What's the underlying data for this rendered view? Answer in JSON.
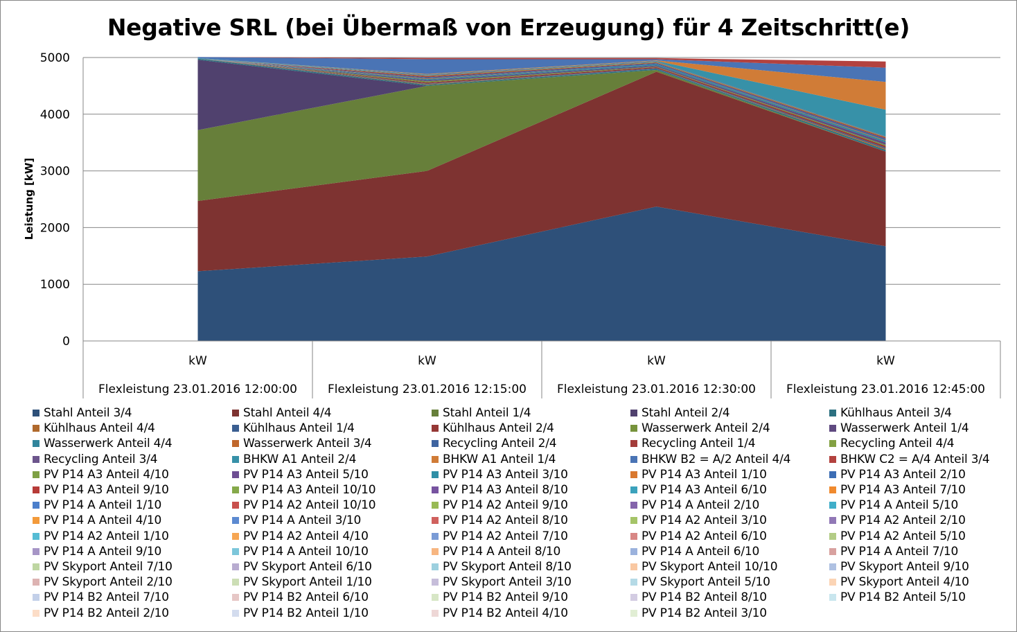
{
  "chart_data": {
    "type": "area",
    "stacked": true,
    "title": "Negative SRL (bei Übermaß von Erzeugung) für 4 Zeitschritt(e)",
    "ylabel": "Leistung [kW]",
    "ylim": [
      0,
      5000
    ],
    "yticks": [
      0,
      1000,
      2000,
      3000,
      4000,
      5000
    ],
    "grid": true,
    "legend_position": "bottom",
    "x_sublabel": [
      "kW",
      "kW",
      "kW",
      "kW"
    ],
    "categories": [
      "Flexleistung 23.01.2016 12:00:00",
      "Flexleistung 23.01.2016 12:15:00",
      "Flexleistung 23.01.2016 12:30:00",
      "Flexleistung 23.01.2016 12:45:00"
    ],
    "series": [
      {
        "name": "Stahl Anteil 3/4",
        "color": "#2E5079",
        "values": [
          1230,
          1490,
          2370,
          1670
        ]
      },
      {
        "name": "Stahl Anteil 4/4",
        "color": "#7E3331",
        "values": [
          1240,
          1510,
          2380,
          1670
        ]
      },
      {
        "name": "Stahl Anteil 1/4",
        "color": "#677F3A",
        "values": [
          1250,
          1500,
          30,
          0
        ]
      },
      {
        "name": "Stahl Anteil 2/4",
        "color": "#50416E",
        "values": [
          1240,
          0,
          0,
          0
        ]
      },
      {
        "name": "Kühlhaus Anteil 3/4",
        "color": "#2C7080",
        "values": [
          20,
          20,
          20,
          30
        ]
      },
      {
        "name": "Kühlhaus Anteil 4/4",
        "color": "#B0692C",
        "values": [
          0,
          10,
          0,
          20
        ]
      },
      {
        "name": "Kühlhaus Anteil 1/4",
        "color": "#3A5E91",
        "values": [
          0,
          10,
          10,
          20
        ]
      },
      {
        "name": "Kühlhaus Anteil 2/4",
        "color": "#953735",
        "values": [
          0,
          20,
          20,
          30
        ]
      },
      {
        "name": "Wasserwerk Anteil 2/4",
        "color": "#77933C",
        "values": [
          0,
          20,
          10,
          20
        ]
      },
      {
        "name": "Wasserwerk Anteil 1/4",
        "color": "#5F4A80",
        "values": [
          0,
          20,
          20,
          40
        ]
      },
      {
        "name": "Wasserwerk Anteil 4/4",
        "color": "#31859C",
        "values": [
          0,
          20,
          20,
          30
        ]
      },
      {
        "name": "Wasserwerk Anteil 3/4",
        "color": "#C0672C",
        "values": [
          0,
          10,
          0,
          10
        ]
      },
      {
        "name": "Recycling Anteil 2/4",
        "color": "#3E64A0",
        "values": [
          0,
          20,
          20,
          30
        ]
      },
      {
        "name": "Recycling Anteil 1/4",
        "color": "#A33C3A",
        "values": [
          0,
          20,
          10,
          20
        ]
      },
      {
        "name": "Recycling Anteil 4/4",
        "color": "#83A143",
        "values": [
          0,
          10,
          10,
          10
        ]
      },
      {
        "name": "Recycling Anteil 3/4",
        "color": "#6C558C",
        "values": [
          0,
          10,
          10,
          10
        ]
      },
      {
        "name": "BHKW A1 Anteil 2/4",
        "color": "#3791A8",
        "values": [
          10,
          10,
          10,
          470
        ]
      },
      {
        "name": "BHKW A1 Anteil 1/4",
        "color": "#D07C37",
        "values": [
          0,
          10,
          10,
          490
        ]
      },
      {
        "name": "BHKW B2 = A/2 Anteil 4/4",
        "color": "#4A74B5",
        "values": [
          20,
          260,
          20,
          250
        ]
      },
      {
        "name": "BHKW C2 = A/4 Anteil 3/4",
        "color": "#B3423F",
        "values": [
          0,
          20,
          20,
          110
        ]
      },
      {
        "name": "PV P14 A3 Anteil 4/10",
        "color": "#7EA044",
        "values": [
          0,
          0,
          0,
          0
        ]
      },
      {
        "name": "PV P14 A3 Anteil 5/10",
        "color": "#6E4E93",
        "values": [
          0,
          0,
          0,
          0
        ]
      },
      {
        "name": "PV P14 A3 Anteil 3/10",
        "color": "#2F8FA6",
        "values": [
          0,
          0,
          0,
          0
        ]
      },
      {
        "name": "PV P14 A3 Anteil 1/10",
        "color": "#D9782F",
        "values": [
          0,
          0,
          0,
          0
        ]
      },
      {
        "name": "PV P14 A3 Anteil 2/10",
        "color": "#3C6DB4",
        "values": [
          0,
          0,
          0,
          0
        ]
      },
      {
        "name": "PV P14 A3 Anteil 9/10",
        "color": "#B73B38",
        "values": [
          0,
          0,
          0,
          0
        ]
      },
      {
        "name": "PV P14 A3 Anteil 10/10",
        "color": "#85A94A",
        "values": [
          0,
          0,
          0,
          0
        ]
      },
      {
        "name": "PV P14 A3 Anteil 8/10",
        "color": "#7753A0",
        "values": [
          0,
          0,
          0,
          0
        ]
      },
      {
        "name": "PV P14 A3 Anteil 6/10",
        "color": "#3BA2BC",
        "values": [
          0,
          0,
          0,
          0
        ]
      },
      {
        "name": "PV P14 A3 Anteil 7/10",
        "color": "#F08A2E",
        "values": [
          0,
          0,
          0,
          0
        ]
      },
      {
        "name": "PV P14 A Anteil 1/10",
        "color": "#4C7FCB",
        "values": [
          0,
          0,
          0,
          0
        ]
      },
      {
        "name": "PV P14 A2 Anteil 10/10",
        "color": "#C9504D",
        "values": [
          0,
          0,
          0,
          0
        ]
      },
      {
        "name": "PV P14 A2 Anteil 9/10",
        "color": "#98BA55",
        "values": [
          0,
          0,
          0,
          0
        ]
      },
      {
        "name": "PV P14 A Anteil 2/10",
        "color": "#8464AB",
        "values": [
          0,
          0,
          0,
          0
        ]
      },
      {
        "name": "PV P14 A Anteil 5/10",
        "color": "#40AEC9",
        "values": [
          0,
          0,
          0,
          0
        ]
      },
      {
        "name": "PV P14 A Anteil 4/10",
        "color": "#F39A3A",
        "values": [
          0,
          0,
          0,
          0
        ]
      },
      {
        "name": "PV P14 A Anteil 3/10",
        "color": "#5C8AD1",
        "values": [
          0,
          0,
          0,
          0
        ]
      },
      {
        "name": "PV P14 A2 Anteil 8/10",
        "color": "#D0615E",
        "values": [
          0,
          0,
          0,
          0
        ]
      },
      {
        "name": "PV P14 A2 Anteil 3/10",
        "color": "#A5C468",
        "values": [
          0,
          0,
          0,
          0
        ]
      },
      {
        "name": "PV P14 A2 Anteil 2/10",
        "color": "#9178B6",
        "values": [
          0,
          0,
          0,
          0
        ]
      },
      {
        "name": "PV P14 A2 Anteil 1/10",
        "color": "#56BCD4",
        "values": [
          0,
          0,
          0,
          0
        ]
      },
      {
        "name": "PV P14 A2 Anteil 4/10",
        "color": "#F6A653",
        "values": [
          0,
          0,
          0,
          0
        ]
      },
      {
        "name": "PV P14 A2 Anteil 7/10",
        "color": "#7A9BD6",
        "values": [
          0,
          0,
          0,
          0
        ]
      },
      {
        "name": "PV P14 A2 Anteil 6/10",
        "color": "#D88785",
        "values": [
          0,
          0,
          0,
          0
        ]
      },
      {
        "name": "PV P14 A2 Anteil 5/10",
        "color": "#B3CC86",
        "values": [
          0,
          0,
          0,
          0
        ]
      },
      {
        "name": "PV P14 A Anteil 9/10",
        "color": "#A695C6",
        "values": [
          0,
          0,
          0,
          0
        ]
      },
      {
        "name": "PV P14 A Anteil 10/10",
        "color": "#7CC6DA",
        "values": [
          0,
          0,
          0,
          0
        ]
      },
      {
        "name": "PV P14 A Anteil 8/10",
        "color": "#F7B681",
        "values": [
          0,
          0,
          0,
          0
        ]
      },
      {
        "name": "PV P14 A Anteil 6/10",
        "color": "#9BB2DD",
        "values": [
          0,
          0,
          0,
          0
        ]
      },
      {
        "name": "PV P14 A Anteil 7/10",
        "color": "#D8A19F",
        "values": [
          0,
          0,
          0,
          0
        ]
      },
      {
        "name": "PV Skyport Anteil 7/10",
        "color": "#BED6A2",
        "values": [
          0,
          0,
          0,
          0
        ]
      },
      {
        "name": "PV Skyport Anteil 6/10",
        "color": "#B8ACD0",
        "values": [
          0,
          0,
          0,
          0
        ]
      },
      {
        "name": "PV Skyport Anteil 8/10",
        "color": "#9DD0DF",
        "values": [
          0,
          0,
          0,
          0
        ]
      },
      {
        "name": "PV Skyport Anteil 10/10",
        "color": "#F9C8A2",
        "values": [
          0,
          0,
          0,
          0
        ]
      },
      {
        "name": "PV Skyport Anteil 9/10",
        "color": "#AFC1E2",
        "values": [
          0,
          0,
          0,
          0
        ]
      },
      {
        "name": "PV Skyport Anteil 2/10",
        "color": "#DDB3B2",
        "values": [
          0,
          0,
          0,
          0
        ]
      },
      {
        "name": "PV Skyport Anteil 1/10",
        "color": "#CCDEB5",
        "values": [
          0,
          0,
          0,
          0
        ]
      },
      {
        "name": "PV Skyport Anteil 3/10",
        "color": "#C6BDDA",
        "values": [
          0,
          0,
          0,
          0
        ]
      },
      {
        "name": "PV Skyport Anteil 5/10",
        "color": "#B5DAE6",
        "values": [
          0,
          0,
          0,
          0
        ]
      },
      {
        "name": "PV Skyport Anteil 4/10",
        "color": "#FBD4B5",
        "values": [
          0,
          0,
          0,
          0
        ]
      },
      {
        "name": "PV P14 B2 Anteil 7/10",
        "color": "#C3D0E9",
        "values": [
          0,
          0,
          0,
          0
        ]
      },
      {
        "name": "PV P14 B2 Anteil 6/10",
        "color": "#E6C7C6",
        "values": [
          0,
          0,
          0,
          0
        ]
      },
      {
        "name": "PV P14 B2 Anteil 9/10",
        "color": "#D7E6C6",
        "values": [
          0,
          0,
          0,
          0
        ]
      },
      {
        "name": "PV P14 B2 Anteil 8/10",
        "color": "#D3CCE2",
        "values": [
          0,
          0,
          0,
          0
        ]
      },
      {
        "name": "PV P14 B2 Anteil 5/10",
        "color": "#C9E6EE",
        "values": [
          0,
          0,
          0,
          0
        ]
      },
      {
        "name": "PV P14 B2 Anteil 2/10",
        "color": "#FCDDC7",
        "values": [
          0,
          0,
          0,
          0
        ]
      },
      {
        "name": "PV P14 B2 Anteil 1/10",
        "color": "#D3DCEE",
        "values": [
          0,
          0,
          0,
          0
        ]
      },
      {
        "name": "PV P14 B2 Anteil 4/10",
        "color": "#EED7D6",
        "values": [
          0,
          0,
          0,
          0
        ]
      },
      {
        "name": "PV P14 B2 Anteil 3/10",
        "color": "#E1EED4",
        "values": [
          0,
          0,
          0,
          0
        ]
      }
    ]
  }
}
